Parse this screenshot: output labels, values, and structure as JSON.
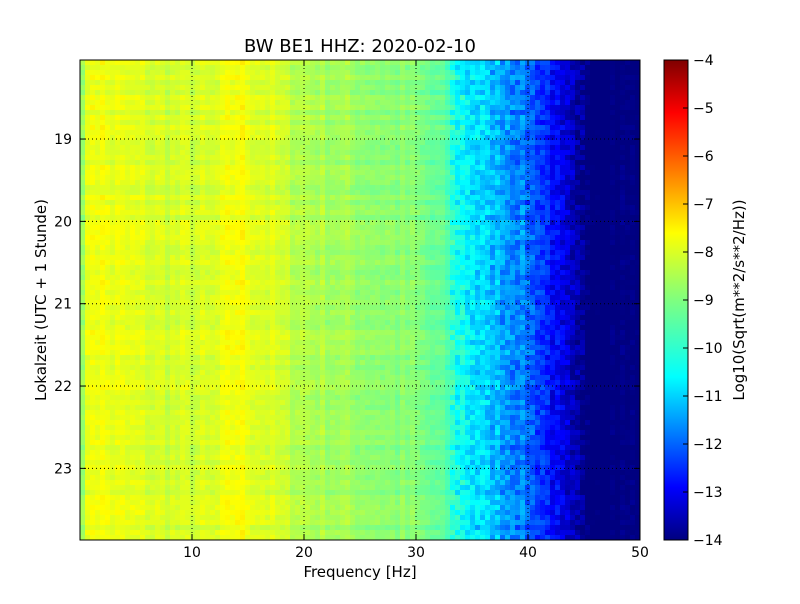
{
  "chart_data": {
    "type": "heatmap",
    "title": "BW BE1 HHZ: 2020-02-10",
    "xlabel": "Frequency [Hz]",
    "ylabel": "Lokalzeit (UTC + 1 Stunde)",
    "xlim": [
      0,
      50
    ],
    "ylim": [
      18.04,
      23.87
    ],
    "x_ticks": [
      10,
      20,
      30,
      40,
      50
    ],
    "y_ticks": [
      19,
      20,
      21,
      22,
      23
    ],
    "grid": true,
    "colorbar": {
      "label": "Log10(Sqrt(m**2/s**2/Hz))",
      "range": [
        -14,
        -4
      ],
      "ticks": [
        -4,
        -5,
        -6,
        -7,
        -8,
        -9,
        -10,
        -11,
        -12,
        -13,
        -14
      ],
      "colormap": "jet"
    },
    "spectrum_profile": {
      "frequency_hz": [
        0,
        1,
        3,
        8,
        12,
        14,
        20,
        30,
        33,
        36,
        40,
        42,
        44,
        46,
        50
      ],
      "level": [
        -8.8,
        -7.8,
        -8.0,
        -8.2,
        -8.2,
        -7.8,
        -8.5,
        -9.0,
        -9.5,
        -10.3,
        -11.3,
        -12.2,
        -13.2,
        -14.0,
        -14.0
      ]
    }
  }
}
